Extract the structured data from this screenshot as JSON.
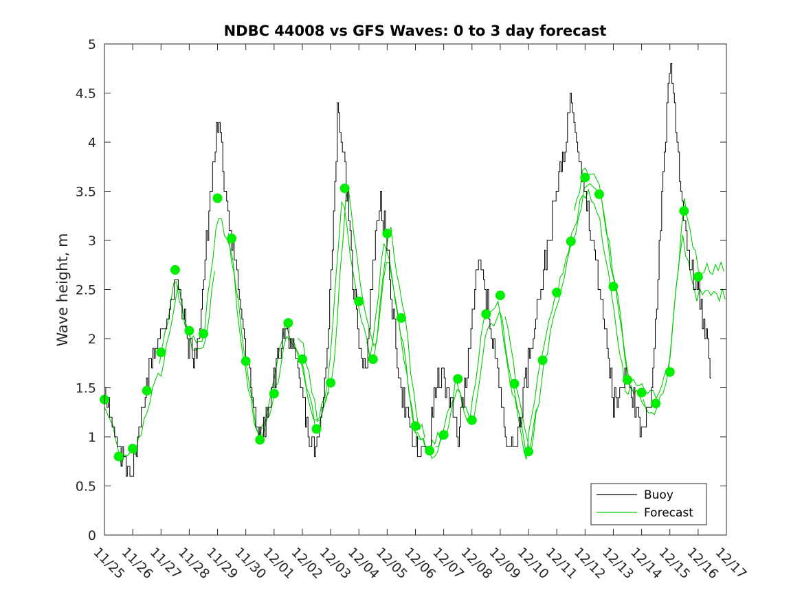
{
  "chart_data": {
    "type": "line",
    "title": "NDBC 44008 vs GFS Waves: 0 to 3 day forecast",
    "xlabel": "",
    "ylabel": "Wave height, m",
    "ylim": [
      0,
      5
    ],
    "xlim": [
      0,
      22
    ],
    "yticks": [
      0,
      0.5,
      1,
      1.5,
      2,
      2.5,
      3,
      3.5,
      4,
      4.5,
      5
    ],
    "ytick_labels": [
      "0",
      "0.5",
      "1",
      "1.5",
      "2",
      "2.5",
      "3",
      "3.5",
      "4",
      "4.5",
      "5"
    ],
    "xtick_labels": [
      "11/25",
      "11/26",
      "11/27",
      "11/28",
      "11/29",
      "11/30",
      "12/01",
      "12/02",
      "12/03",
      "12/04",
      "12/05",
      "12/06",
      "12/07",
      "12/08",
      "12/09",
      "12/10",
      "12/11",
      "12/12",
      "12/13",
      "12/14",
      "12/15",
      "12/16",
      "12/17"
    ],
    "legend": {
      "position": "bottom-right",
      "entries": [
        "Buoy",
        "Forecast"
      ]
    },
    "colors": {
      "buoy": "#000000",
      "forecast": "#00cc00",
      "marker": "#00ee00"
    },
    "buoy": {
      "name": "Buoy",
      "x": [
        0,
        0.25,
        0.5,
        0.75,
        1,
        1.25,
        1.5,
        1.75,
        2,
        2.25,
        2.5,
        2.75,
        3,
        3.25,
        3.5,
        3.75,
        4,
        4.25,
        4.5,
        4.75,
        5,
        5.25,
        5.5,
        5.75,
        6,
        6.25,
        6.5,
        6.75,
        7,
        7.25,
        7.5,
        7.75,
        8,
        8.25,
        8.5,
        8.75,
        9,
        9.25,
        9.5,
        9.75,
        10,
        10.25,
        10.5,
        10.75,
        11,
        11.25,
        11.5,
        11.75,
        12,
        12.25,
        12.5,
        12.75,
        13,
        13.25,
        13.5,
        13.75,
        14,
        14.25,
        14.5,
        14.75,
        15,
        15.25,
        15.5,
        15.75,
        16,
        16.25,
        16.5,
        16.75,
        17,
        17.25,
        17.5,
        17.75,
        18,
        18.25,
        18.5,
        18.75,
        19,
        19.25,
        19.5,
        19.75,
        20,
        20.25,
        20.5,
        20.75,
        21,
        21.25,
        21.5
      ],
      "values": [
        1.6,
        1.1,
        0.8,
        0.75,
        0.7,
        1.1,
        1.6,
        1.9,
        2.0,
        2.3,
        2.6,
        2.3,
        1.9,
        1.8,
        2.6,
        3.5,
        4.2,
        3.6,
        3.0,
        2.5,
        1.8,
        1.4,
        0.95,
        1.2,
        1.6,
        2.0,
        2.1,
        1.7,
        1.4,
        0.95,
        0.85,
        1.4,
        2.6,
        4.4,
        3.7,
        2.7,
        2.0,
        1.7,
        2.8,
        3.5,
        2.9,
        2.1,
        1.5,
        1.1,
        0.85,
        0.8,
        1.0,
        1.6,
        1.6,
        1.3,
        1.0,
        1.5,
        2.3,
        2.8,
        2.4,
        2.0,
        1.4,
        1.0,
        0.85,
        1.3,
        1.8,
        2.3,
        2.6,
        3.1,
        3.5,
        3.9,
        4.5,
        4.0,
        3.5,
        3.0,
        2.5,
        2.0,
        1.3,
        1.5,
        1.7,
        1.3,
        1.0,
        1.2,
        2.2,
        3.7,
        4.9,
        4.0,
        3.2,
        2.7,
        2.5,
        2.0,
        1.6
      ]
    },
    "forecast_markers": {
      "x": [
        0,
        0.5,
        1,
        1.5,
        2,
        2.5,
        3,
        3.5,
        4,
        4.5,
        5,
        5.5,
        6,
        6.5,
        7,
        7.5,
        8,
        8.5,
        9,
        9.5,
        10,
        10.5,
        11,
        11.5,
        12,
        12.5,
        13,
        13.5,
        14,
        14.5,
        15,
        15.5,
        16,
        16.5,
        17,
        17.5,
        18,
        18.5,
        19,
        19.5,
        20,
        20.5,
        21
      ],
      "values": [
        1.38,
        0.8,
        0.88,
        1.47,
        1.86,
        2.7,
        2.08,
        2.05,
        3.43,
        3.02,
        1.77,
        0.97,
        1.44,
        2.16,
        1.79,
        1.08,
        1.55,
        3.53,
        2.38,
        1.79,
        3.07,
        2.21,
        1.11,
        0.86,
        1.02,
        1.59,
        1.17,
        2.25,
        2.44,
        1.54,
        0.85,
        1.78,
        2.47,
        2.99,
        3.64,
        3.47,
        2.53,
        1.58,
        1.45,
        1.34,
        1.66,
        3.3,
        2.63
      ]
    }
  }
}
